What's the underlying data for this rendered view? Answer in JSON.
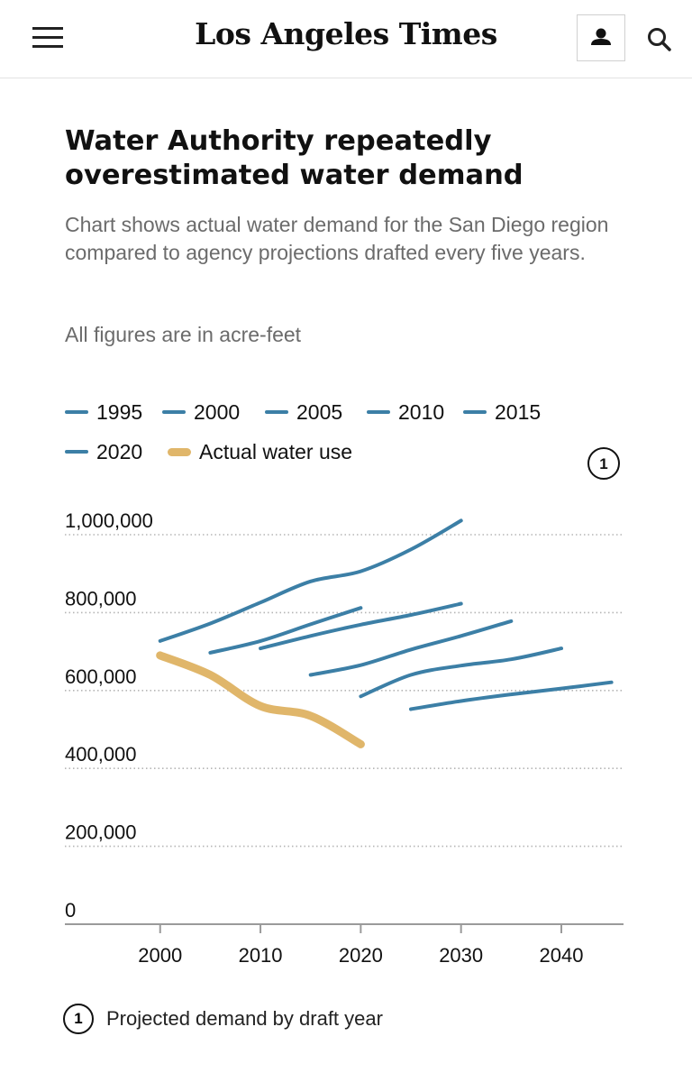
{
  "header": {
    "masthead": "Los Angeles Times",
    "menu_icon": "hamburger-menu-icon",
    "account_icon": "user-icon",
    "search_icon": "search-icon"
  },
  "article": {
    "title": "Water Authority repeatedly overestimated water demand",
    "subtitle": "Chart shows actual water demand for the San Diego region compared to agency projections drafted every five years.",
    "units_note": "All figures are in acre-feet",
    "footnote_badge": "1",
    "footnote": "Projected demand by draft year"
  },
  "colors": {
    "projection": "#3c7fa6",
    "actual": "#e0b66a",
    "grid": "#b5b5b5",
    "axis": "#9a9a9a",
    "text": "#111111",
    "muted": "#6b6b6b"
  },
  "chart_data": {
    "type": "line",
    "title": "Water Authority repeatedly overestimated water demand",
    "xlabel": "",
    "ylabel": "",
    "xlim": [
      1990.5,
      2046.2
    ],
    "ylim": [
      0,
      1000000
    ],
    "xticks": [
      2000,
      2010,
      2020,
      2030,
      2040
    ],
    "yticks": [
      0,
      200000,
      400000,
      600000,
      800000,
      1000000
    ],
    "ytick_labels": [
      "0",
      "200,000",
      "400,000",
      "600,000",
      "800,000",
      "1,000,000"
    ],
    "grid": "horizontal dotted",
    "legend_position": "top",
    "annotation_badge": "1",
    "series": [
      {
        "name": "1995",
        "kind": "projection",
        "points": [
          [
            2000,
            727000
          ],
          [
            2005,
            772000
          ],
          [
            2010,
            826000
          ],
          [
            2015,
            880000
          ],
          [
            2020,
            906000
          ],
          [
            2025,
            962000
          ],
          [
            2030,
            1036000
          ]
        ]
      },
      {
        "name": "2000",
        "kind": "projection",
        "points": [
          [
            2005,
            697000
          ],
          [
            2010,
            727000
          ],
          [
            2015,
            770000
          ],
          [
            2020,
            812000
          ]
        ]
      },
      {
        "name": "2005",
        "kind": "projection",
        "points": [
          [
            2010,
            708000
          ],
          [
            2015,
            740000
          ],
          [
            2020,
            769000
          ],
          [
            2025,
            794000
          ],
          [
            2030,
            823000
          ]
        ]
      },
      {
        "name": "2010",
        "kind": "projection",
        "points": [
          [
            2015,
            640000
          ],
          [
            2020,
            665000
          ],
          [
            2025,
            705000
          ],
          [
            2030,
            740000
          ],
          [
            2035,
            778000
          ]
        ]
      },
      {
        "name": "2015",
        "kind": "projection",
        "points": [
          [
            2020,
            585000
          ],
          [
            2025,
            640000
          ],
          [
            2030,
            664000
          ],
          [
            2035,
            680000
          ],
          [
            2040,
            708000
          ]
        ]
      },
      {
        "name": "2020",
        "kind": "projection",
        "points": [
          [
            2025,
            552000
          ],
          [
            2030,
            573000
          ],
          [
            2035,
            590000
          ],
          [
            2040,
            605000
          ],
          [
            2045,
            621000
          ]
        ]
      },
      {
        "name": "Actual water use",
        "kind": "actual",
        "points": [
          [
            2000,
            690000
          ],
          [
            2005,
            640000
          ],
          [
            2010,
            560000
          ],
          [
            2015,
            535000
          ],
          [
            2020,
            462000
          ]
        ]
      }
    ]
  }
}
